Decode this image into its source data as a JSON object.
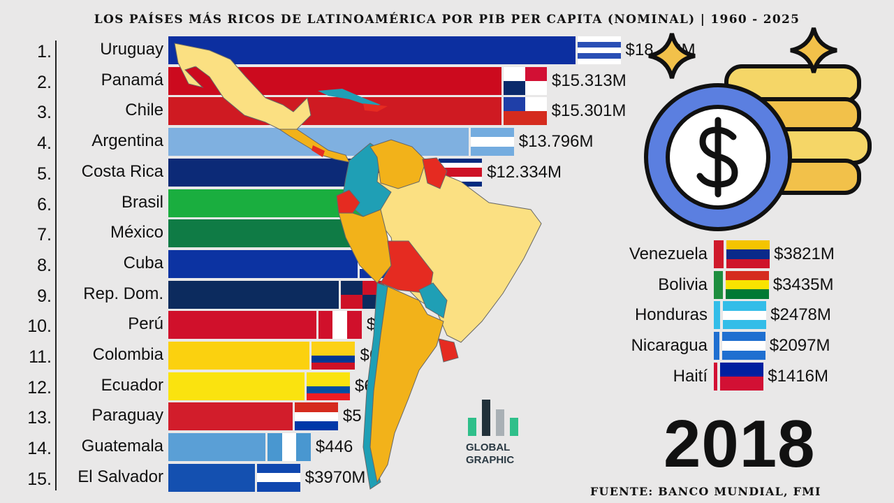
{
  "title": "LOS PAÍSES MÁS RICOS DE LATINOAMÉRICA POR PIB PER CAPITA (NOMINAL) | 1960 - 2025",
  "year": "2018",
  "source": "FUENTE: BANCO MUNDIAL, FMI",
  "logo": {
    "line1": "GLOBAL",
    "line2": "GRAPHIC"
  },
  "chart_data": {
    "type": "bar",
    "orientation": "horizontal",
    "title": "LOS PAÍSES MÁS RICOS DE LATINOAMÉRICA POR PIB PER CAPITA (NOMINAL) | 1960 - 2025",
    "unit": "$ M",
    "categories": [
      "Uruguay",
      "Panamá",
      "Chile",
      "Argentina",
      "Costa Rica",
      "Brasil",
      "México",
      "Cuba",
      "Rep. Dom.",
      "Perú",
      "Colombia",
      "Ecuador",
      "Paraguay",
      "Guatemala",
      "El Salvador"
    ],
    "values": [
      18700,
      15313,
      15301,
      13796,
      12334,
      9000,
      8900,
      8700,
      7830,
      6800,
      6500,
      6260,
      5710,
      4460,
      3970
    ],
    "rows": [
      {
        "rank": "1.",
        "name": "Uruguay",
        "value": 18700,
        "label": "$18    6M",
        "color": "#0c2fa0",
        "flag": {
          "dir": "h",
          "stripes": [
            "#ffffff",
            "#2a4fb5",
            "#ffffff",
            "#2a4fb5",
            "#ffffff"
          ]
        }
      },
      {
        "rank": "2.",
        "name": "Panamá",
        "value": 15313,
        "label": "$15.313M",
        "color": "#cc0a1e",
        "flag": {
          "dir": "q",
          "stripes": [
            "#ffffff",
            "#d21034",
            "#0a2a6b",
            "#ffffff"
          ]
        }
      },
      {
        "rank": "3.",
        "name": "Chile",
        "value": 15301,
        "label": "$15.301M",
        "color": "#cf1a22",
        "flag": {
          "dir": "q",
          "stripes": [
            "#1f3fa8",
            "#ffffff",
            "#d52b1e",
            "#d52b1e"
          ]
        }
      },
      {
        "rank": "4.",
        "name": "Argentina",
        "value": 13796,
        "label": "$13.796M",
        "color": "#7fb0e0",
        "flag": {
          "dir": "h",
          "stripes": [
            "#74acdf",
            "#ffffff",
            "#74acdf"
          ]
        }
      },
      {
        "rank": "5.",
        "name": "Costa Rica",
        "value": 12334,
        "label": "$12.334M",
        "color": "#0c2a77",
        "flag": {
          "dir": "h",
          "stripes": [
            "#002b7f",
            "#ffffff",
            "#ce1126",
            "#ce1126",
            "#ffffff",
            "#002b7f"
          ]
        }
      },
      {
        "rank": "6.",
        "name": "Brasil",
        "value": 9000,
        "label": "M",
        "color": "#1aae3f",
        "flag": {
          "dir": "h",
          "stripes": [
            "#1aae3f"
          ]
        }
      },
      {
        "rank": "7.",
        "name": "México",
        "value": 8900,
        "label": "",
        "color": "#0f7b45",
        "flag": {
          "dir": "v",
          "stripes": [
            "#0f7b45",
            "#ffffff",
            "#ce1126"
          ]
        }
      },
      {
        "rank": "8.",
        "name": "Cuba",
        "value": 8700,
        "label": "",
        "color": "#0c33a2",
        "flag": {
          "dir": "h",
          "stripes": [
            "#0c33a2",
            "#ffffff",
            "#0c33a2"
          ]
        }
      },
      {
        "rank": "9.",
        "name": "Rep. Dom.",
        "value": 7830,
        "label": "",
        "color": "#0c2b5e",
        "flag": {
          "dir": "q",
          "stripes": [
            "#0c2b5e",
            "#ce1126",
            "#ce1126",
            "#0c2b5e"
          ]
        }
      },
      {
        "rank": "10.",
        "name": "Perú",
        "value": 6800,
        "label": "$",
        "color": "#d0102b",
        "flag": {
          "dir": "v",
          "stripes": [
            "#d0102b",
            "#ffffff",
            "#d0102b"
          ]
        }
      },
      {
        "rank": "11.",
        "name": "Colombia",
        "value": 6500,
        "label": "$6",
        "color": "#fbd10f",
        "flag": {
          "dir": "h",
          "stripes": [
            "#fcd116",
            "#fcd116",
            "#003893",
            "#ce1126"
          ]
        }
      },
      {
        "rank": "12.",
        "name": "Ecuador",
        "value": 6260,
        "label": "$6     M",
        "color": "#fae30f",
        "flag": {
          "dir": "h",
          "stripes": [
            "#fae30f",
            "#fae30f",
            "#034ea2",
            "#ed1c24"
          ]
        }
      },
      {
        "rank": "13.",
        "name": "Paraguay",
        "value": 5710,
        "label": "$5     M",
        "color": "#d21d2b",
        "flag": {
          "dir": "h",
          "stripes": [
            "#d52b1e",
            "#ffffff",
            "#0038a8"
          ]
        }
      },
      {
        "rank": "14.",
        "name": "Guatemala",
        "value": 4460,
        "label": "$446",
        "color": "#5a9fd6",
        "flag": {
          "dir": "v",
          "stripes": [
            "#4997d0",
            "#ffffff",
            "#4997d0"
          ]
        }
      },
      {
        "rank": "15.",
        "name": "El Salvador",
        "value": 3970,
        "label": "$3970M",
        "color": "#1450b0",
        "flag": {
          "dir": "h",
          "stripes": [
            "#0f47af",
            "#ffffff",
            "#0f47af"
          ]
        }
      }
    ]
  },
  "others": [
    {
      "name": "Venezuela",
      "label": "$3821M",
      "value": 3821,
      "color": "#cf1a2b",
      "flag": {
        "dir": "h",
        "stripes": [
          "#f4c400",
          "#0a2a8a",
          "#cf142b"
        ]
      }
    },
    {
      "name": "Bolivia",
      "label": "$3435M",
      "value": 3435,
      "color": "#1e8e3e",
      "flag": {
        "dir": "h",
        "stripes": [
          "#d52b1e",
          "#f9e300",
          "#007934"
        ]
      }
    },
    {
      "name": "Honduras",
      "label": "$2478M",
      "value": 2478,
      "color": "#33bde8",
      "flag": {
        "dir": "h",
        "stripes": [
          "#33bde8",
          "#ffffff",
          "#33bde8"
        ]
      }
    },
    {
      "name": "Nicaragua",
      "label": "$2097M",
      "value": 2097,
      "color": "#1f6fd0",
      "flag": {
        "dir": "h",
        "stripes": [
          "#1f6fd0",
          "#ffffff",
          "#1f6fd0"
        ]
      }
    },
    {
      "name": "Haití",
      "label": "$1416M",
      "value": 1416,
      "color": "#d21034",
      "flag": {
        "dir": "h",
        "stripes": [
          "#00209f",
          "#d21034"
        ]
      }
    }
  ]
}
